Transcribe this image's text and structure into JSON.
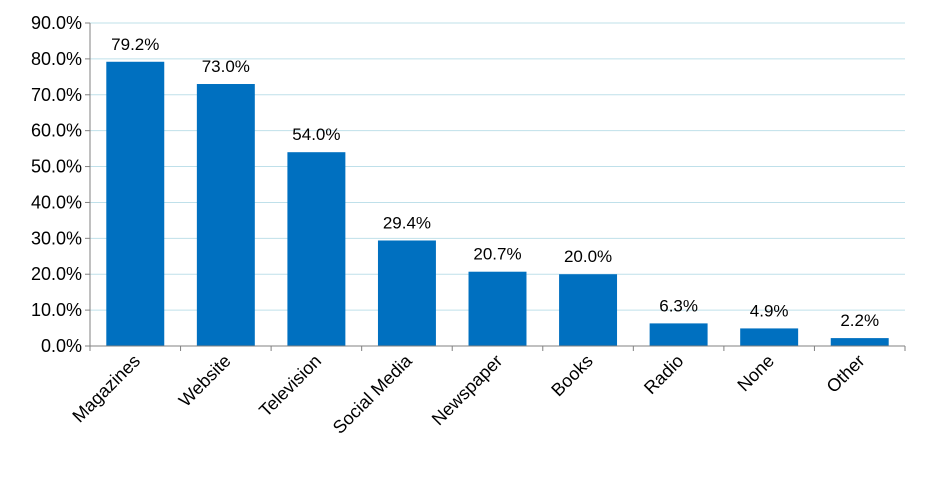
{
  "chart_data": {
    "type": "bar",
    "title": "",
    "xlabel": "",
    "ylabel": "",
    "categories": [
      "Magazines",
      "Website",
      "Television",
      "Social Media",
      "Newspaper",
      "Books",
      "Radio",
      "None",
      "Other"
    ],
    "values": [
      79.2,
      73.0,
      54.0,
      29.4,
      20.7,
      20.0,
      6.3,
      4.9,
      2.2
    ],
    "data_labels": [
      "79.2%",
      "73.0%",
      "54.0%",
      "29.4%",
      "20.7%",
      "20.0%",
      "6.3%",
      "4.9%",
      "2.2%"
    ],
    "ylim": [
      0,
      90
    ],
    "yticks": [
      0,
      10,
      20,
      30,
      40,
      50,
      60,
      70,
      80,
      90
    ],
    "ytick_labels": [
      "0.0%",
      "10.0%",
      "20.0%",
      "30.0%",
      "40.0%",
      "50.0%",
      "60.0%",
      "70.0%",
      "80.0%",
      "90.0%"
    ],
    "grid": true,
    "legend": "none",
    "colors": {
      "bar": "#0070C0",
      "grid": "#BFE0EA",
      "axis": "#808080"
    }
  }
}
